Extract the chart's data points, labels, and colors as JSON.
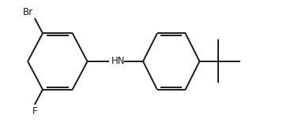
{
  "bg_color": "#ffffff",
  "line_color": "#1a1a1a",
  "line_width": 1.4,
  "font_size": 8.5,
  "figsize": [
    3.58,
    1.55
  ],
  "dpi": 100,
  "xlim": [
    0,
    358
  ],
  "ylim": [
    0,
    155
  ]
}
